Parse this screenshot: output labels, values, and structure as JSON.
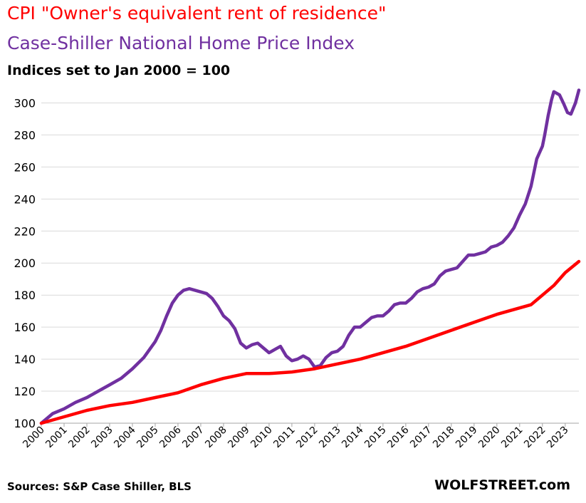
{
  "titles": {
    "line1": "CPI \"Owner's equivalent rent of residence\"",
    "line2": "Case-Shiller National Home Price Index",
    "line3": "Indices set to Jan 2000 = 100"
  },
  "footer": {
    "source": "Sources: S&P Case Shiller, BLS",
    "brand": "WOLFSTREET.com"
  },
  "colors": {
    "oer": "#ff0000",
    "case_shiller": "#7030a0",
    "grid": "#d9d9d9",
    "axis": "#a6a6a6"
  },
  "chart_data": {
    "type": "line",
    "title": "CPI \"Owner's equivalent rent of residence\" / Case-Shiller National Home Price Index",
    "subtitle": "Indices set to Jan 2000 = 100",
    "xlabel": "",
    "ylabel": "",
    "ylim": [
      100,
      310
    ],
    "yticks": [
      100,
      120,
      140,
      160,
      180,
      200,
      220,
      240,
      260,
      280,
      300
    ],
    "xlim": [
      2000,
      2023.6
    ],
    "xticks": [
      "2000",
      "2001",
      "2002",
      "2003",
      "2004",
      "2005",
      "2006",
      "2007",
      "2008",
      "2009",
      "2010",
      "2011",
      "2012",
      "2013",
      "2014",
      "2015",
      "2016",
      "2017",
      "2018",
      "2019",
      "2020",
      "2021",
      "2022",
      "2023"
    ],
    "grid": true,
    "legend": "none",
    "series": [
      {
        "name": "Case-Shiller National Home Price Index",
        "color": "#7030a0",
        "x": [
          2000,
          2000.5,
          2001,
          2001.5,
          2002,
          2002.5,
          2003,
          2003.5,
          2004,
          2004.5,
          2005,
          2005.25,
          2005.5,
          2005.75,
          2006,
          2006.25,
          2006.5,
          2006.75,
          2007,
          2007.25,
          2007.5,
          2007.75,
          2008,
          2008.25,
          2008.5,
          2008.75,
          2009,
          2009.25,
          2009.5,
          2009.75,
          2010,
          2010.25,
          2010.5,
          2010.75,
          2011,
          2011.25,
          2011.5,
          2011.75,
          2012,
          2012.25,
          2012.5,
          2012.75,
          2013,
          2013.25,
          2013.5,
          2013.75,
          2014,
          2014.25,
          2014.5,
          2014.75,
          2015,
          2015.25,
          2015.5,
          2015.75,
          2016,
          2016.25,
          2016.5,
          2016.75,
          2017,
          2017.25,
          2017.5,
          2017.75,
          2018,
          2018.25,
          2018.5,
          2018.75,
          2019,
          2019.25,
          2019.5,
          2019.75,
          2020,
          2020.25,
          2020.5,
          2020.75,
          2021,
          2021.25,
          2021.5,
          2021.75,
          2022,
          2022.1,
          2022.25,
          2022.4,
          2022.5,
          2022.75,
          2022.95,
          2023.1,
          2023.25,
          2023.45,
          2023.6
        ],
        "values": [
          100,
          106,
          109,
          113,
          116,
          120,
          124,
          128,
          134,
          141,
          151,
          158,
          167,
          175,
          180,
          183,
          184,
          183,
          182,
          181,
          178,
          173,
          167,
          164,
          159,
          150,
          147,
          149,
          150,
          147,
          144,
          146,
          148,
          142,
          139,
          140,
          142,
          140,
          135,
          136,
          141,
          144,
          145,
          148,
          155,
          160,
          160,
          163,
          166,
          167,
          167,
          170,
          174,
          175,
          175,
          178,
          182,
          184,
          185,
          187,
          192,
          195,
          196,
          197,
          201,
          205,
          205,
          206,
          207,
          210,
          211,
          213,
          217,
          222,
          230,
          237,
          248,
          265,
          273,
          280,
          292,
          302,
          307,
          305,
          299,
          294,
          293,
          300,
          308
        ]
      },
      {
        "name": "CPI \"Owner's equivalent rent of residence\"",
        "color": "#ff0000",
        "x": [
          2000,
          2001,
          2002,
          2003,
          2004,
          2005,
          2006,
          2007,
          2008,
          2009,
          2010,
          2011,
          2012,
          2013,
          2014,
          2015,
          2016,
          2017,
          2018,
          2019,
          2020,
          2021,
          2021.5,
          2022,
          2022.5,
          2023,
          2023.6
        ],
        "values": [
          100,
          104,
          108,
          111,
          113,
          116,
          119,
          124,
          128,
          131,
          131,
          132,
          134,
          137,
          140,
          144,
          148,
          153,
          158,
          163,
          168,
          172,
          174,
          180,
          186,
          194,
          201
        ]
      }
    ]
  }
}
